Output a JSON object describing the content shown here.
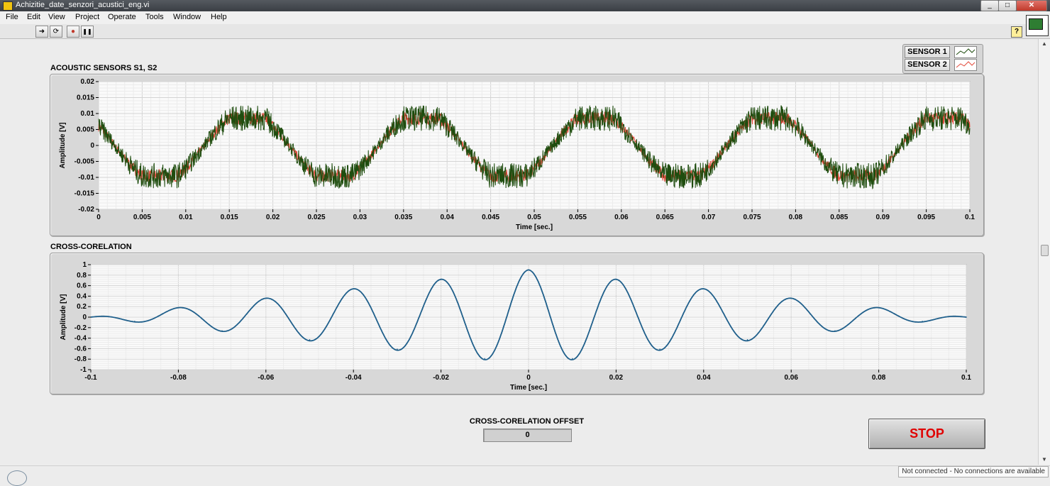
{
  "window": {
    "title": "Achizitie_date_senzori_acustici_eng.vi",
    "minimize": "_",
    "maximize": "□",
    "close": "✕"
  },
  "menu": [
    "File",
    "Edit",
    "View",
    "Project",
    "Operate",
    "Tools",
    "Window",
    "Help"
  ],
  "toolbar": {
    "run": "➜",
    "run_continuous": "⟳",
    "abort": "●",
    "pause": "❚❚",
    "help": "?"
  },
  "legend": {
    "items": [
      "SENSOR 1",
      "SENSOR 2"
    ],
    "colors": [
      "#1f4d0f",
      "#e34b3c"
    ]
  },
  "offset": {
    "label": "CROSS-CORELATION OFFSET",
    "value": "0"
  },
  "stop": {
    "label": "STOP"
  },
  "status": {
    "text": "Not connected - No connections are available"
  },
  "chart_data": [
    {
      "type": "line",
      "title": "ACOUSTIC SENSORS S1, S2",
      "xlabel": "Time [sec.]",
      "ylabel": "Amplitude [V]",
      "xlim": [
        0,
        0.1
      ],
      "ylim": [
        -0.02,
        0.02
      ],
      "x_ticks": [
        "0",
        "0.005",
        "0.01",
        "0.015",
        "0.02",
        "0.025",
        "0.03",
        "0.035",
        "0.04",
        "0.045",
        "0.05",
        "0.055",
        "0.06",
        "0.065",
        "0.07",
        "0.075",
        "0.08",
        "0.085",
        "0.09",
        "0.095",
        "0.1"
      ],
      "y_ticks": [
        "0.02",
        "0.015",
        "0.01",
        "0.005",
        "0",
        "-0.005",
        "-0.01",
        "-0.015",
        "-0.02"
      ],
      "grid": true,
      "legend": "top-right",
      "series": [
        {
          "name": "SENSOR 1",
          "color": "#1f4d0f",
          "fundamental_period_s": 0.02,
          "amplitude_V": 0.009,
          "noise_V": 0.004
        },
        {
          "name": "SENSOR 2",
          "color": "#e34b3c",
          "fundamental_period_s": 0.02,
          "amplitude_V": 0.009,
          "noise_V": 0.002
        }
      ]
    },
    {
      "type": "line",
      "title": "CROSS-CORELATION",
      "xlabel": "Time [sec.]",
      "ylabel": "Amplitude [V]",
      "xlim": [
        -0.1,
        0.1
      ],
      "ylim": [
        -1,
        1
      ],
      "x_ticks": [
        "-0.1",
        "-0.08",
        "-0.06",
        "-0.04",
        "-0.02",
        "0",
        "0.02",
        "0.04",
        "0.06",
        "0.08",
        "0.1"
      ],
      "y_ticks": [
        "1",
        "0.8",
        "0.6",
        "0.4",
        "0.2",
        "0",
        "-0.2",
        "-0.4",
        "-0.6",
        "-0.8",
        "-1"
      ],
      "grid": true,
      "series": [
        {
          "color": "#1f5f8b",
          "peak_V": 0.9,
          "period_s": 0.02,
          "x": [
            -0.1,
            -0.09,
            -0.08,
            -0.07,
            -0.06,
            -0.05,
            -0.04,
            -0.03,
            -0.02,
            -0.01,
            0,
            0.01,
            0.02,
            0.03,
            0.04,
            0.05,
            0.06,
            0.07,
            0.08,
            0.09,
            0.1
          ],
          "y": [
            0,
            -0.08,
            0.18,
            -0.26,
            0.36,
            -0.43,
            0.54,
            -0.61,
            0.72,
            -0.79,
            0.9,
            -0.79,
            0.72,
            -0.61,
            0.54,
            -0.43,
            0.36,
            -0.26,
            0.18,
            -0.08,
            0
          ]
        }
      ]
    }
  ]
}
